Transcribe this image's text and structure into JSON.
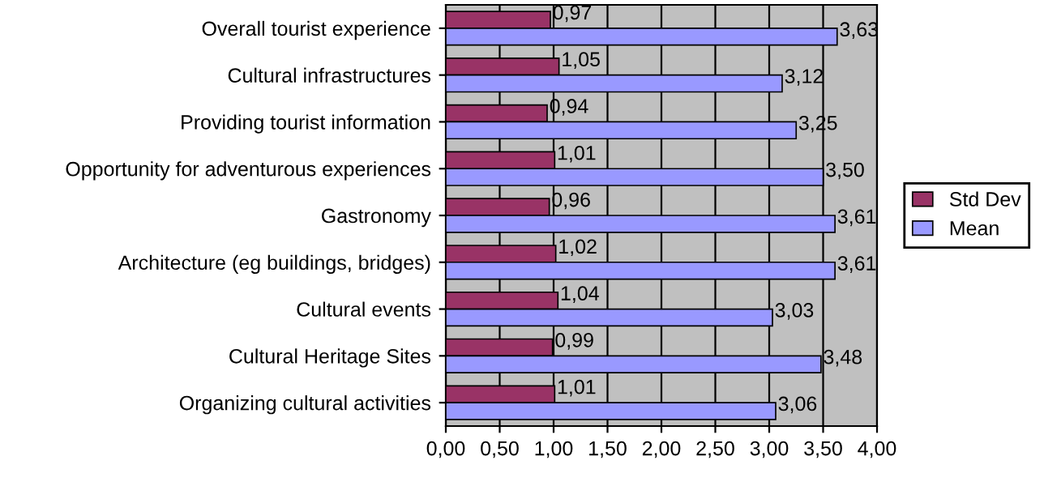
{
  "chart_data": {
    "type": "bar",
    "orientation": "horizontal",
    "categories": [
      "Overall tourist experience",
      "Cultural infrastructures",
      "Providing tourist information",
      "Opportunity for adventurous experiences",
      "Gastronomy",
      "Architecture (eg buildings, bridges)",
      "Cultural events",
      "Cultural Heritage Sites",
      "Organizing cultural activities"
    ],
    "series": [
      {
        "name": "Std Dev",
        "color": "#993366",
        "values": [
          0.97,
          1.05,
          0.94,
          1.01,
          0.96,
          1.02,
          1.04,
          0.99,
          1.01
        ],
        "value_labels": [
          "0,97",
          "1,05",
          "0,94",
          "1,01",
          "0,96",
          "1,02",
          "1,04",
          "0,99",
          "1,01"
        ]
      },
      {
        "name": "Mean",
        "color": "#9999ff",
        "values": [
          3.63,
          3.12,
          3.25,
          3.5,
          3.61,
          3.61,
          3.03,
          3.48,
          3.06
        ],
        "value_labels": [
          "3,63",
          "3,12",
          "3,25",
          "3,50",
          "3,61",
          "3,61",
          "3,03",
          "3,48",
          "3,06"
        ]
      }
    ],
    "xlim": [
      0,
      4
    ],
    "xticks": [
      {
        "value": 0,
        "label": "0,00"
      },
      {
        "value": 0.5,
        "label": "0,50"
      },
      {
        "value": 1,
        "label": "1,00"
      },
      {
        "value": 1.5,
        "label": "1,50"
      },
      {
        "value": 2,
        "label": "2,00"
      },
      {
        "value": 2.5,
        "label": "2,50"
      },
      {
        "value": 3,
        "label": "3,00"
      },
      {
        "value": 3.5,
        "label": "3,50"
      },
      {
        "value": 4,
        "label": "4,00"
      }
    ],
    "grid": "x",
    "legend": "right"
  }
}
